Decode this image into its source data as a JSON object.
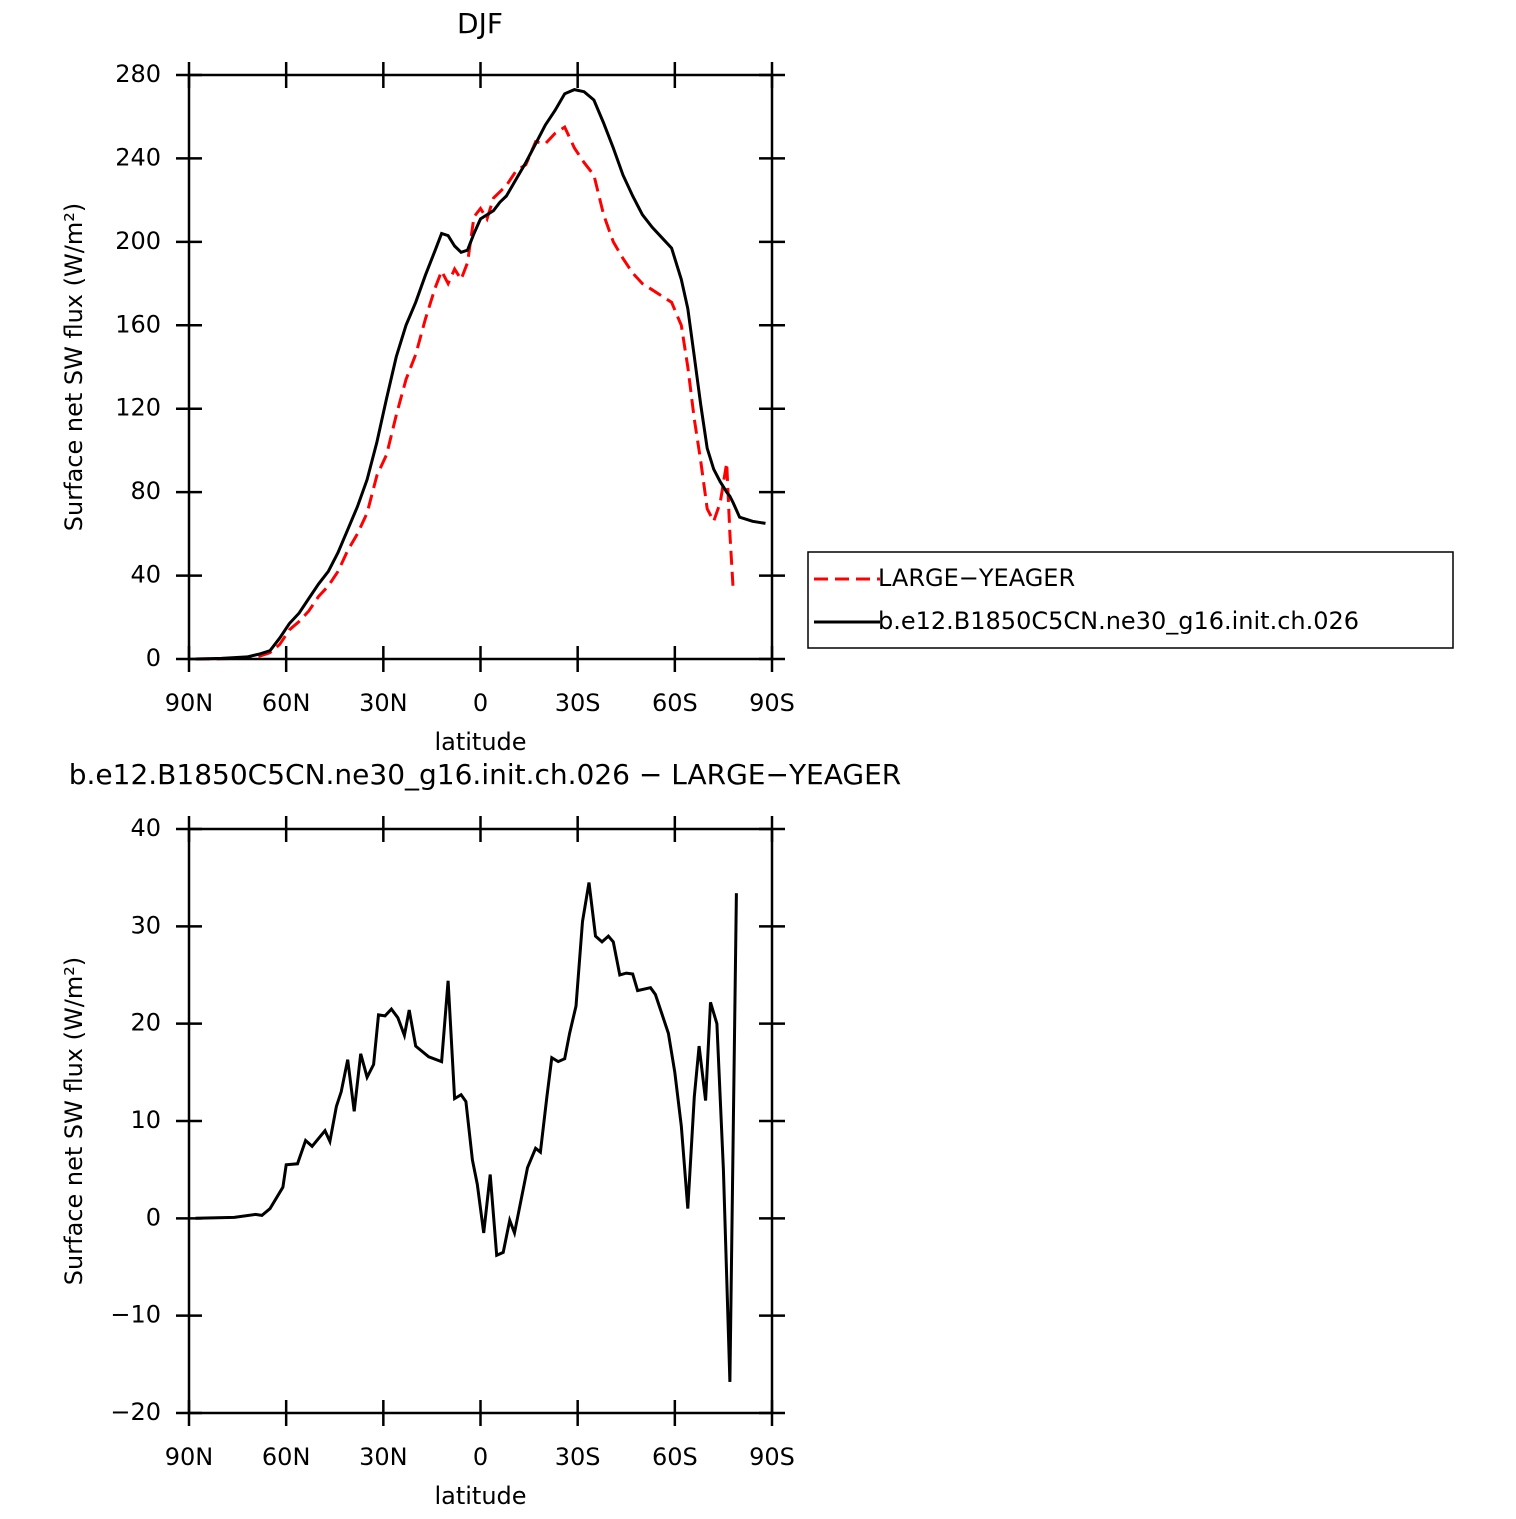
{
  "chart_data": [
    {
      "type": "line",
      "title": "DJF",
      "xlabel": "latitude",
      "ylabel": "Surface net SW flux (W/m²)",
      "x": [
        88,
        80,
        72,
        68,
        65,
        62,
        59,
        56,
        53,
        50,
        47,
        44,
        41,
        38,
        35,
        32,
        29,
        26,
        23,
        20,
        17,
        14,
        12,
        10,
        8,
        6,
        4,
        2,
        0,
        -2,
        -4,
        -6,
        -8,
        -11,
        -14,
        -17,
        -20,
        -23,
        -26,
        -29,
        -32,
        -35,
        -38,
        -41,
        -44,
        -47,
        -50,
        -53,
        -56,
        -59,
        -62,
        -64,
        -66,
        -68,
        -70,
        -72,
        -74,
        -76,
        -77,
        -78,
        -80,
        -84,
        -88
      ],
      "series": [
        {
          "name": "LARGE−YEAGER",
          "color": "#ff0000",
          "dash": true,
          "values": [
            0,
            0.1,
            0.5,
            1.5,
            3,
            7,
            14,
            18,
            23,
            30,
            35,
            42,
            52,
            60,
            70,
            88,
            98,
            117,
            134,
            146,
            163,
            178,
            186,
            180,
            187,
            182,
            190,
            212,
            216,
            211,
            221,
            224,
            227,
            234,
            237,
            248,
            247,
            252,
            255,
            245,
            238,
            232,
            213,
            200,
            192,
            185,
            180,
            177,
            174,
            171,
            160,
            140,
            115,
            95,
            72,
            66,
            75,
            94,
            60,
            34,
            null,
            null,
            null
          ]
        },
        {
          "name": "b.e12.B1850C5CN.ne30_g16.init.ch.026",
          "color": "#000000",
          "dash": false,
          "values": [
            0,
            0.3,
            1,
            2.5,
            4,
            10,
            17,
            22,
            29,
            36,
            42,
            51,
            62,
            73,
            86,
            104,
            125,
            145,
            160,
            171,
            184,
            196,
            204,
            203,
            198,
            195,
            196,
            204,
            211,
            213,
            215,
            219,
            222,
            230,
            238,
            247,
            256,
            263,
            271,
            273,
            272,
            268,
            257,
            245,
            232,
            222,
            213,
            207,
            202,
            197,
            182,
            168,
            145,
            122,
            101,
            91,
            85,
            80,
            78,
            75,
            68,
            66,
            65
          ]
        }
      ],
      "xlim": [
        90,
        -90
      ],
      "xticks": [
        {
          "value": 90,
          "label": "90N"
        },
        {
          "value": 60,
          "label": "60N"
        },
        {
          "value": 30,
          "label": "30N"
        },
        0,
        {
          "value": -30,
          "label": "30S"
        },
        {
          "value": -60,
          "label": "60S"
        },
        {
          "value": -90,
          "label": "90S"
        }
      ],
      "ylim": [
        0,
        280
      ],
      "yticks": [
        0,
        40,
        80,
        120,
        160,
        200,
        240,
        280
      ],
      "legend": "outside-right"
    },
    {
      "type": "line",
      "title": "b.e12.B1850C5CN.ne30_g16.init.ch.026 − LARGE−YEAGER",
      "xlabel": "latitude",
      "ylabel": "Surface net SW flux (W/m²)",
      "x": [
        88,
        76,
        69.5,
        67.5,
        65,
        61,
        60,
        56.5,
        54,
        52,
        48,
        46.5,
        44.5,
        43,
        41,
        39,
        37,
        35,
        33,
        31.5,
        29.5,
        27.5,
        25.5,
        23.5,
        22,
        20,
        16,
        12,
        10,
        8,
        6,
        4.5,
        2.5,
        1,
        -1,
        -3,
        -5,
        -7,
        -9,
        -10.5,
        -14.5,
        -17,
        -18.5,
        -20.5,
        -22,
        -24,
        -26,
        -27.5,
        -29.5,
        -31.5,
        -33.5,
        -35.5,
        -37.5,
        -39.5,
        -41,
        -43,
        -45,
        -47,
        -48.5,
        -52.5,
        -54,
        -56,
        -58,
        -60,
        -62,
        -64,
        -66,
        -67.5,
        -69.5,
        -71,
        -73,
        -75,
        -77,
        -79
      ],
      "series": [
        {
          "color": "#000000",
          "dash": false,
          "values": [
            0,
            0.1,
            0.4,
            0.3,
            1,
            3.2,
            5.5,
            5.6,
            8,
            7.4,
            9,
            7.9,
            11.5,
            13,
            16.3,
            11,
            16.9,
            14.5,
            15.8,
            20.9,
            20.8,
            21.5,
            20.6,
            18.8,
            21.4,
            17.7,
            16.6,
            16.1,
            24.4,
            12.3,
            12.7,
            12,
            6,
            3.5,
            -1.5,
            4.5,
            -3.8,
            -3.5,
            -0.2,
            -1.5,
            5.2,
            7.2,
            6.8,
            12.5,
            16.5,
            16.1,
            16.4,
            19,
            21.8,
            30.5,
            34.5,
            29,
            28.4,
            29,
            28.4,
            25,
            25.2,
            25.1,
            23.4,
            23.7,
            23,
            21,
            19,
            15,
            9.5,
            1,
            12.5,
            17.7,
            12.1,
            22.2,
            20,
            5,
            -16.8,
            33.4
          ]
        }
      ],
      "xlim": [
        90,
        -90
      ],
      "xticks": [
        {
          "value": 90,
          "label": "90N"
        },
        {
          "value": 60,
          "label": "60N"
        },
        {
          "value": 30,
          "label": "30N"
        },
        0,
        {
          "value": -30,
          "label": "30S"
        },
        {
          "value": -60,
          "label": "60S"
        },
        {
          "value": -90,
          "label": "90S"
        }
      ],
      "ylim": [
        -20,
        40
      ],
      "yticks": [
        {
          "value": -20,
          "label": "−20"
        },
        {
          "value": -10,
          "label": "−10"
        },
        0,
        10,
        20,
        30,
        40
      ]
    }
  ]
}
